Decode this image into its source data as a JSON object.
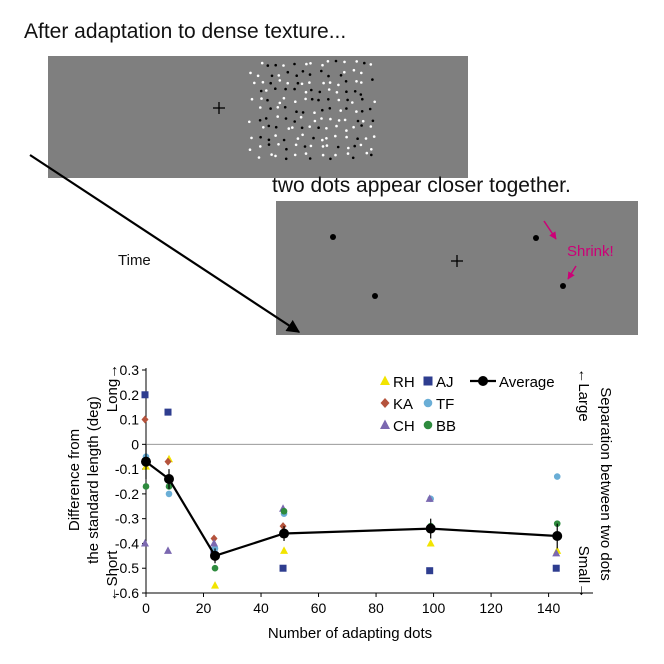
{
  "captions": {
    "top": "After adaptation to dense texture...",
    "middle": "two dots appear closer together.",
    "time": "Time",
    "shrink": "Shrink!"
  },
  "colors": {
    "panel_gray": "#7f7f7f",
    "shrink_magenta": "#cc0077",
    "RH": "#f2e400",
    "AJ": "#2e3d8f",
    "KA": "#b5533c",
    "TF": "#6aaed6",
    "CH": "#7b68b0",
    "BB": "#2e8b3e",
    "Average": "#000000"
  },
  "chart_data": {
    "type": "scatter",
    "xlabel": "Number of adapting dots",
    "ylabel_line1": "Difference from",
    "ylabel_line2": "the standard length (deg)",
    "left_top_label": "Long→",
    "left_bottom_label": "←Short",
    "right_label": "Separation between two dots",
    "right_top_label": "←Large",
    "right_bottom_label": "Small→",
    "xlim": [
      0,
      150
    ],
    "ylim": [
      -0.6,
      0.3
    ],
    "xticks": [
      "0",
      "20",
      "40",
      "60",
      "80",
      "100",
      "120",
      "140"
    ],
    "yticks": [
      "0.3",
      "0.2",
      "0.1",
      "0",
      "-0.1",
      "-0.2",
      "-0.3",
      "-0.4",
      "-0.5",
      "-0.6"
    ],
    "series": [
      {
        "name": "RH",
        "marker": "triangle",
        "x": [
          0,
          8,
          24,
          48,
          99,
          143
        ],
        "y": [
          -0.09,
          -0.06,
          -0.57,
          -0.43,
          -0.4,
          -0.43
        ]
      },
      {
        "name": "AJ",
        "marker": "square",
        "x": [
          0,
          8,
          24,
          48,
          99,
          143
        ],
        "y": [
          0.2,
          0.13,
          -0.43,
          -0.5,
          -0.51,
          -0.5
        ]
      },
      {
        "name": "KA",
        "marker": "diamond",
        "x": [
          0,
          8,
          24,
          48,
          99,
          143
        ],
        "y": [
          0.1,
          -0.07,
          -0.38,
          -0.33,
          -0.34,
          -0.37
        ]
      },
      {
        "name": "TF",
        "marker": "circle",
        "x": [
          0,
          8,
          24,
          48,
          99,
          143
        ],
        "y": [
          -0.05,
          -0.2,
          -0.42,
          -0.28,
          -0.22,
          -0.13
        ]
      },
      {
        "name": "CH",
        "marker": "triangle",
        "x": [
          0,
          8,
          24,
          48,
          99,
          143
        ],
        "y": [
          -0.4,
          -0.43,
          -0.4,
          -0.26,
          -0.22,
          -0.44
        ]
      },
      {
        "name": "BB",
        "marker": "circle",
        "x": [
          0,
          8,
          24,
          48,
          99,
          143
        ],
        "y": [
          -0.17,
          -0.17,
          -0.5,
          -0.27,
          -0.33,
          -0.32
        ]
      },
      {
        "name": "Average",
        "marker": "circle-line",
        "x": [
          0,
          8,
          24,
          48,
          99,
          143
        ],
        "y": [
          -0.07,
          -0.14,
          -0.45,
          -0.36,
          -0.34,
          -0.37
        ],
        "err": [
          0.07,
          0.04,
          0.03,
          0.03,
          0.04,
          0.05
        ]
      }
    ],
    "legend_placement": "top-right",
    "grid": false
  }
}
